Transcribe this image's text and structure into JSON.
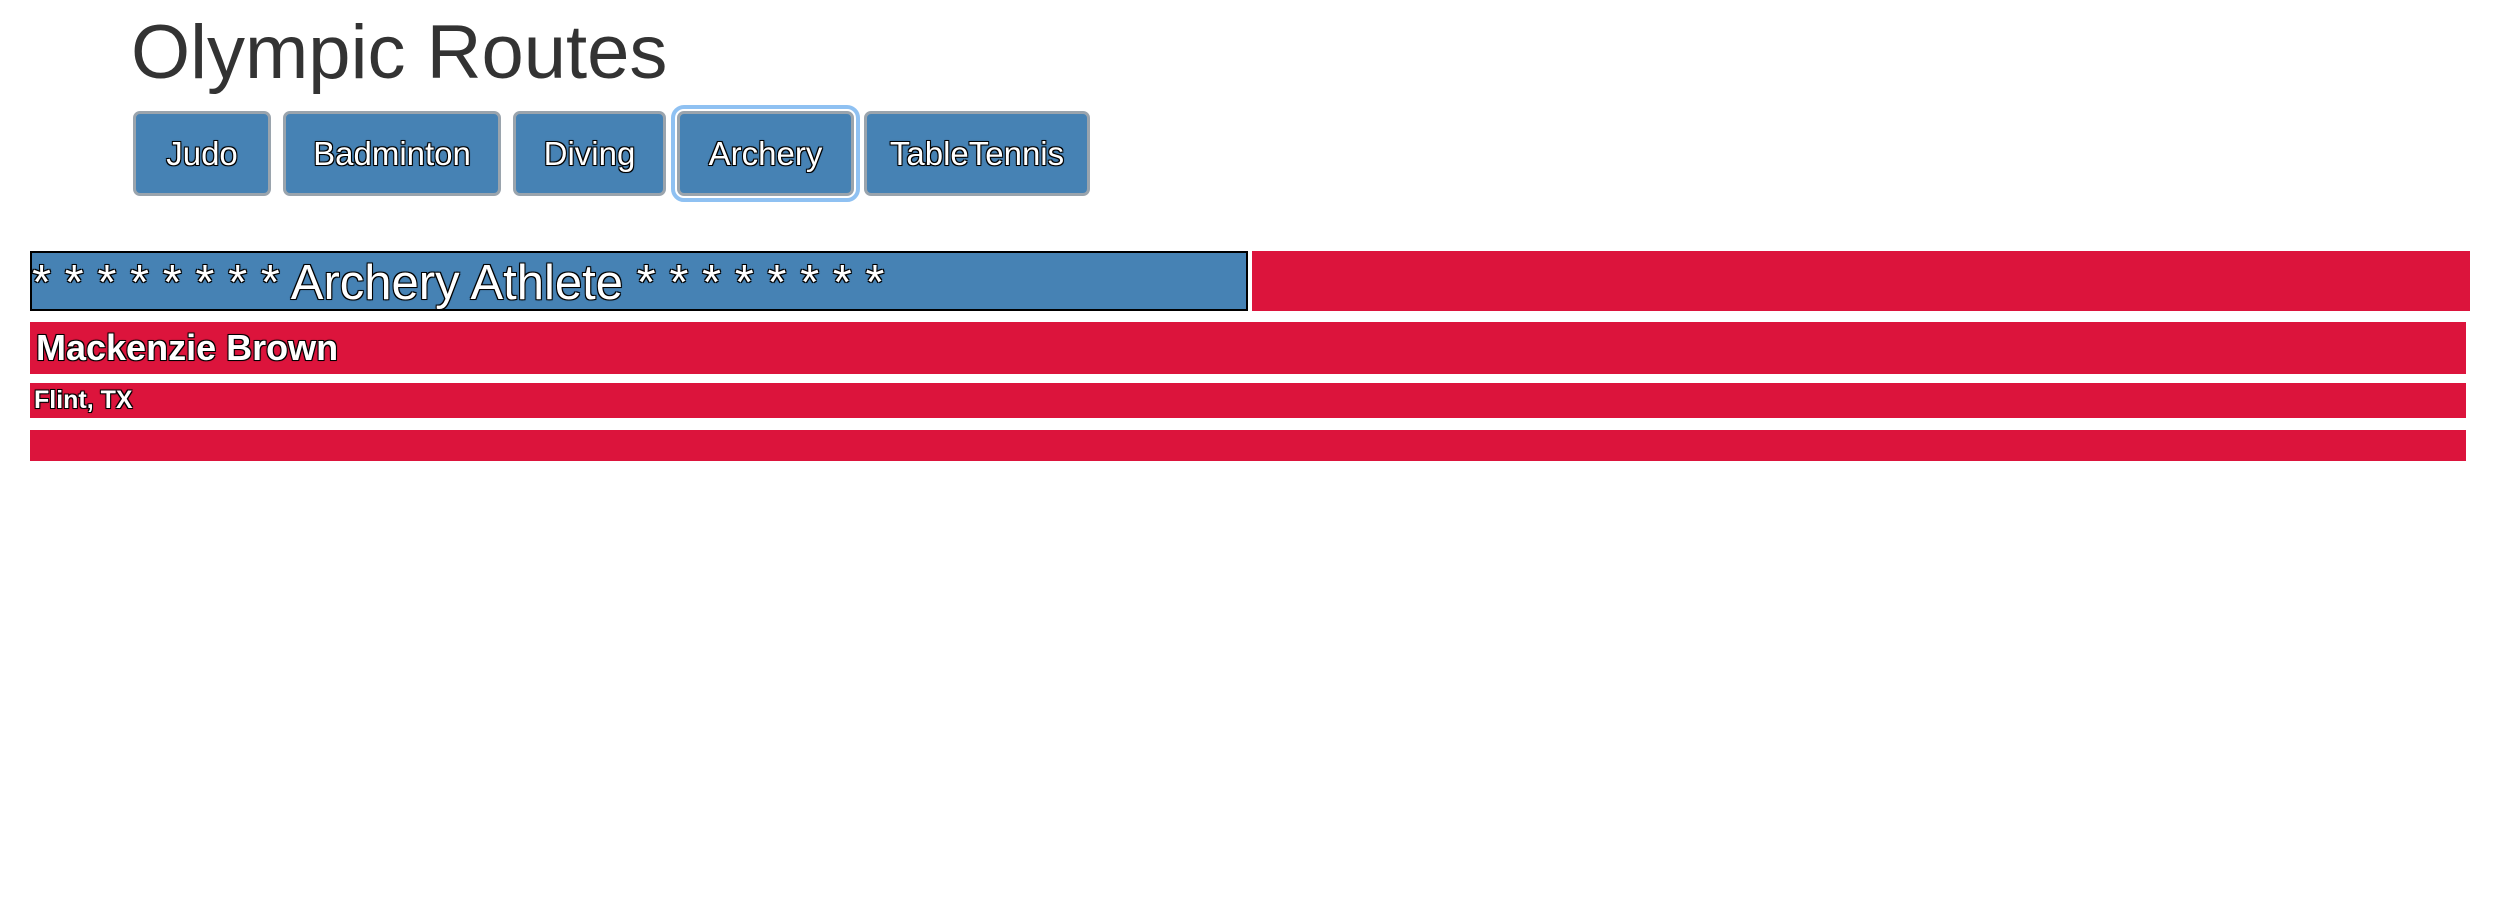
{
  "app": {
    "title": "Olympic Routes"
  },
  "nav": {
    "buttons": [
      {
        "label": "Judo"
      },
      {
        "label": "Badminton"
      },
      {
        "label": "Diving"
      },
      {
        "label": "Archery",
        "active": true
      },
      {
        "label": "TableTennis"
      }
    ]
  },
  "card": {
    "header": "* * * * * * * * Archery Athlete * * * * * * * *",
    "athlete_name": "Mackenzie Brown",
    "location": "Flint, TX"
  },
  "colors": {
    "button_bg": "#4682b4",
    "header_bg": "#4682b4",
    "card_bg": "#dc143c",
    "title_color": "#333333"
  }
}
